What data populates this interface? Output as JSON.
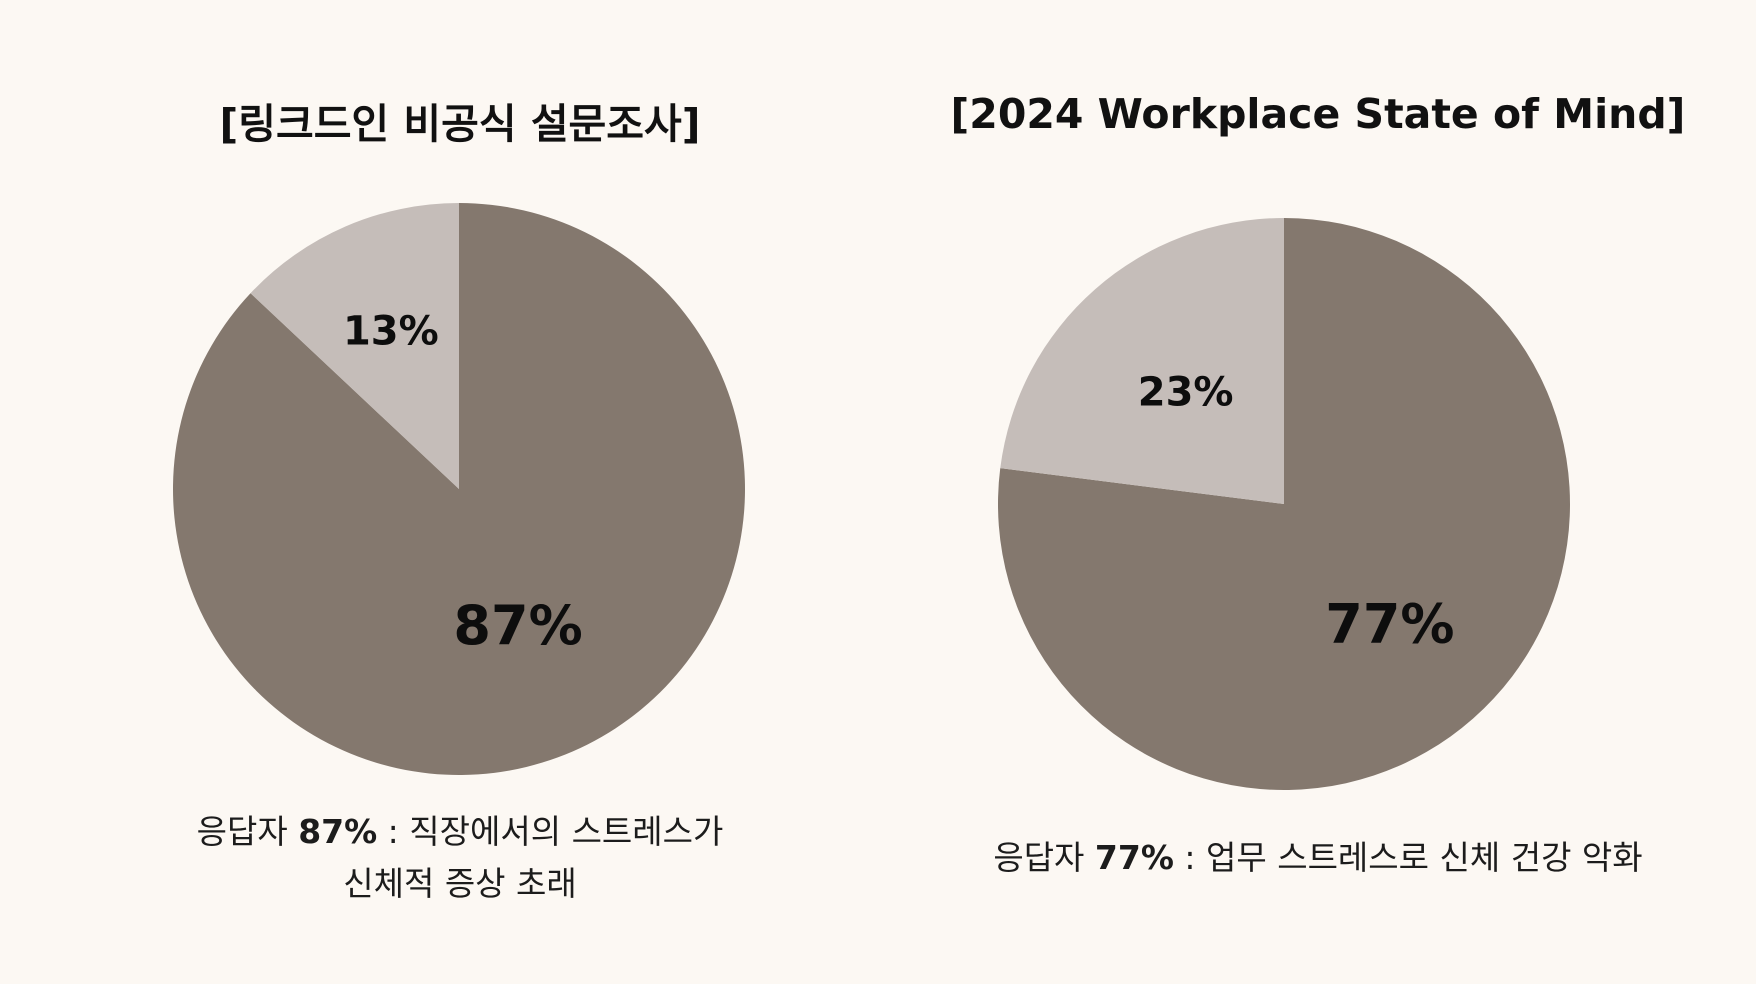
{
  "colors": {
    "background": "#fcf8f3",
    "major_slice": "#84786e",
    "minor_slice": "#c5bdb9",
    "text": "#111111"
  },
  "chart_data": [
    {
      "type": "pie",
      "title": "[링크드인 비공식 설문조사]",
      "slices": [
        {
          "label": "87%",
          "value": 87,
          "color": "#84786e"
        },
        {
          "label": "13%",
          "value": 13,
          "color": "#c5bdb9"
        }
      ],
      "caption": {
        "prefix": "응답자 ",
        "highlight": "87%",
        "suffix": " : 직장에서의 스트레스가",
        "line2": "신체적 증상 초래"
      }
    },
    {
      "type": "pie",
      "title": "[2024 Workplace State of Mind]",
      "slices": [
        {
          "label": "77%",
          "value": 77,
          "color": "#84786e"
        },
        {
          "label": "23%",
          "value": 23,
          "color": "#c5bdb9"
        }
      ],
      "caption": {
        "prefix": "응답자 ",
        "highlight": "77%",
        "suffix": " : 업무 스트레스로 신체 건강 악화",
        "line2": ""
      }
    }
  ]
}
